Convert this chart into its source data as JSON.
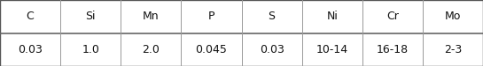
{
  "headers": [
    "C",
    "Si",
    "Mn",
    "P",
    "S",
    "Ni",
    "Cr",
    "Mo"
  ],
  "values": [
    "0.03",
    "1.0",
    "2.0",
    "0.045",
    "0.03",
    "10-14",
    "16-18",
    "2-3"
  ],
  "fontsize": 9,
  "font_family": "DejaVu Sans",
  "border_color": "#555555",
  "divider_color": "#666666",
  "col_divider_color": "#999999",
  "bg_color": "#ffffff",
  "text_color": "#111111",
  "fig_width": 5.45,
  "fig_height": 0.75,
  "dpi": 100
}
